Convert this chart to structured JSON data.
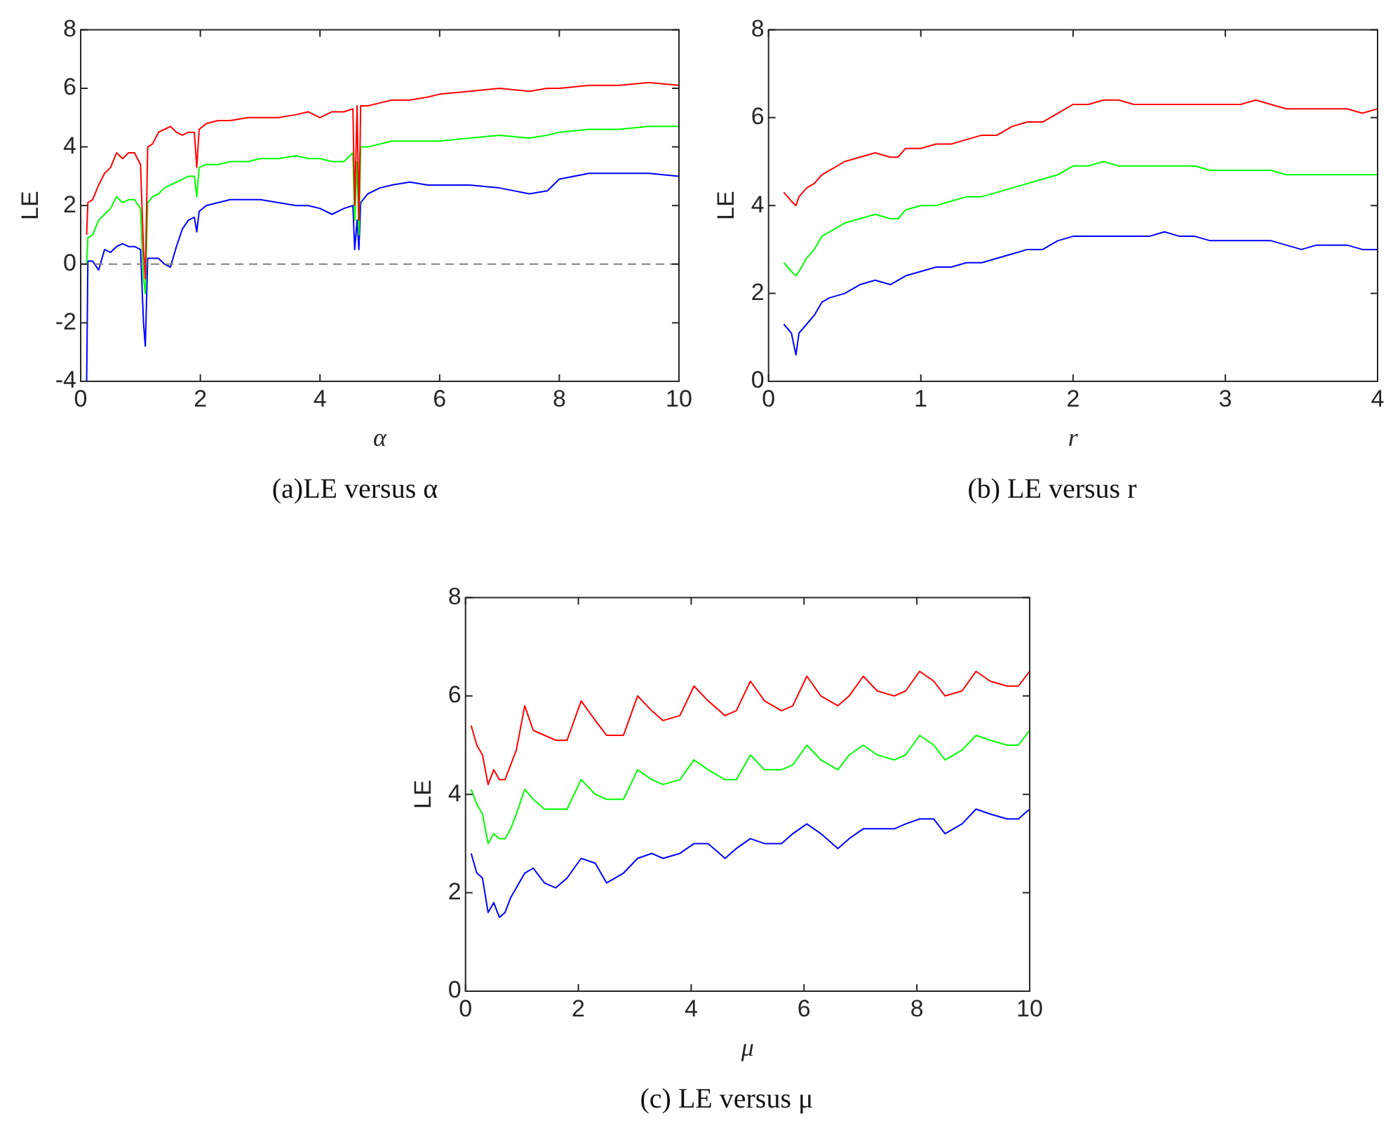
{
  "chart_data": [
    {
      "type": "line",
      "title": "(a)LE versus α",
      "xlabel": "α",
      "ylabel": "LE",
      "xlim": [
        0,
        10
      ],
      "xticks": [
        0,
        2,
        4,
        6,
        8,
        10
      ],
      "ylim": [
        -4,
        8
      ],
      "yticks": [
        -4,
        -2,
        0,
        2,
        4,
        6,
        8
      ],
      "grid": false,
      "legend": false,
      "marker": "none",
      "line_style": "solid",
      "x": [
        0.1,
        0.12,
        0.2,
        0.3,
        0.4,
        0.5,
        0.6,
        0.7,
        0.8,
        0.9,
        1.0,
        1.05,
        1.08,
        1.12,
        1.2,
        1.3,
        1.4,
        1.5,
        1.6,
        1.7,
        1.8,
        1.9,
        1.94,
        1.98,
        2.1,
        2.3,
        2.5,
        2.8,
        3.0,
        3.3,
        3.6,
        3.8,
        4.0,
        4.2,
        4.4,
        4.55,
        4.58,
        4.62,
        4.65,
        4.68,
        4.8,
        5.0,
        5.2,
        5.5,
        5.8,
        6.0,
        6.5,
        7.0,
        7.5,
        7.8,
        8.0,
        8.5,
        9.0,
        9.5,
        10
      ],
      "ref_lines": [
        {
          "axis": "y",
          "value": 0,
          "color": "#808080",
          "line_style": "dashed"
        }
      ],
      "series": [
        {
          "color": "#ff0000",
          "values": [
            1.0,
            2.1,
            2.2,
            2.7,
            3.1,
            3.3,
            3.8,
            3.6,
            3.8,
            3.8,
            3.4,
            0.5,
            -0.5,
            4.0,
            4.1,
            4.5,
            4.6,
            4.7,
            4.5,
            4.4,
            4.5,
            4.5,
            3.3,
            4.6,
            4.8,
            4.9,
            4.9,
            5.0,
            5.0,
            5.0,
            5.1,
            5.2,
            5.0,
            5.2,
            5.2,
            5.3,
            2.0,
            5.4,
            1.5,
            5.4,
            5.4,
            5.5,
            5.6,
            5.6,
            5.7,
            5.8,
            5.9,
            6.0,
            5.9,
            6.0,
            6.0,
            6.1,
            6.1,
            6.2,
            6.1
          ]
        },
        {
          "color": "#00ff00",
          "values": [
            0.0,
            0.9,
            1.0,
            1.5,
            1.7,
            1.9,
            2.3,
            2.1,
            2.2,
            2.2,
            1.9,
            -0.5,
            -1.0,
            2.1,
            2.3,
            2.4,
            2.6,
            2.7,
            2.8,
            2.9,
            3.0,
            3.0,
            2.3,
            3.3,
            3.4,
            3.4,
            3.5,
            3.5,
            3.6,
            3.6,
            3.7,
            3.6,
            3.6,
            3.5,
            3.5,
            3.8,
            1.5,
            3.5,
            1.0,
            4.0,
            4.0,
            4.1,
            4.2,
            4.2,
            4.2,
            4.2,
            4.3,
            4.4,
            4.3,
            4.4,
            4.5,
            4.6,
            4.6,
            4.7,
            4.7
          ]
        },
        {
          "color": "#0000ff",
          "values": [
            -4.0,
            0.1,
            0.1,
            -0.2,
            0.5,
            0.4,
            0.6,
            0.7,
            0.6,
            0.6,
            0.5,
            -2.0,
            -2.8,
            0.2,
            0.2,
            0.2,
            0.0,
            -0.1,
            0.6,
            1.2,
            1.5,
            1.6,
            1.1,
            1.8,
            2.0,
            2.1,
            2.2,
            2.2,
            2.2,
            2.1,
            2.0,
            2.0,
            1.9,
            1.7,
            1.9,
            2.0,
            0.5,
            1.5,
            0.5,
            2.1,
            2.4,
            2.6,
            2.7,
            2.8,
            2.7,
            2.7,
            2.7,
            2.6,
            2.4,
            2.5,
            2.9,
            3.1,
            3.1,
            3.1,
            3.0
          ]
        }
      ]
    },
    {
      "type": "line",
      "title": "(b) LE versus r",
      "xlabel": "r",
      "ylabel": "LE",
      "xlim": [
        0,
        4
      ],
      "xticks": [
        0,
        1,
        2,
        3,
        4
      ],
      "ylim": [
        0,
        8
      ],
      "yticks": [
        0,
        2,
        4,
        6,
        8
      ],
      "grid": false,
      "legend": false,
      "marker": "none",
      "line_style": "solid",
      "x": [
        0.1,
        0.15,
        0.18,
        0.2,
        0.25,
        0.3,
        0.35,
        0.4,
        0.5,
        0.6,
        0.7,
        0.8,
        0.85,
        0.9,
        1.0,
        1.1,
        1.2,
        1.3,
        1.4,
        1.5,
        1.6,
        1.7,
        1.8,
        1.9,
        2.0,
        2.1,
        2.2,
        2.3,
        2.4,
        2.5,
        2.6,
        2.7,
        2.8,
        2.9,
        3.0,
        3.1,
        3.2,
        3.3,
        3.4,
        3.5,
        3.6,
        3.7,
        3.8,
        3.9,
        4.0
      ],
      "series": [
        {
          "color": "#ff0000",
          "values": [
            4.3,
            4.1,
            4.0,
            4.2,
            4.4,
            4.5,
            4.7,
            4.8,
            5.0,
            5.1,
            5.2,
            5.1,
            5.1,
            5.3,
            5.3,
            5.4,
            5.4,
            5.5,
            5.6,
            5.6,
            5.8,
            5.9,
            5.9,
            6.1,
            6.3,
            6.3,
            6.4,
            6.4,
            6.3,
            6.3,
            6.3,
            6.3,
            6.3,
            6.3,
            6.3,
            6.3,
            6.4,
            6.3,
            6.2,
            6.2,
            6.2,
            6.2,
            6.2,
            6.1,
            6.2
          ]
        },
        {
          "color": "#00ff00",
          "values": [
            2.7,
            2.5,
            2.4,
            2.5,
            2.8,
            3.0,
            3.3,
            3.4,
            3.6,
            3.7,
            3.8,
            3.7,
            3.7,
            3.9,
            4.0,
            4.0,
            4.1,
            4.2,
            4.2,
            4.3,
            4.4,
            4.5,
            4.6,
            4.7,
            4.9,
            4.9,
            5.0,
            4.9,
            4.9,
            4.9,
            4.9,
            4.9,
            4.9,
            4.8,
            4.8,
            4.8,
            4.8,
            4.8,
            4.7,
            4.7,
            4.7,
            4.7,
            4.7,
            4.7,
            4.7
          ]
        },
        {
          "color": "#0000ff",
          "values": [
            1.3,
            1.1,
            0.6,
            1.1,
            1.3,
            1.5,
            1.8,
            1.9,
            2.0,
            2.2,
            2.3,
            2.2,
            2.3,
            2.4,
            2.5,
            2.6,
            2.6,
            2.7,
            2.7,
            2.8,
            2.9,
            3.0,
            3.0,
            3.2,
            3.3,
            3.3,
            3.3,
            3.3,
            3.3,
            3.3,
            3.4,
            3.3,
            3.3,
            3.2,
            3.2,
            3.2,
            3.2,
            3.2,
            3.1,
            3.0,
            3.1,
            3.1,
            3.1,
            3.0,
            3.0
          ]
        }
      ]
    },
    {
      "type": "line",
      "title": "(c) LE versus μ",
      "xlabel": "μ",
      "ylabel": "LE",
      "xlim": [
        0,
        10
      ],
      "xticks": [
        0,
        2,
        4,
        6,
        8,
        10
      ],
      "ylim": [
        0,
        8
      ],
      "yticks": [
        0,
        2,
        4,
        6,
        8
      ],
      "grid": false,
      "legend": false,
      "marker": "none",
      "line_style": "solid",
      "x": [
        0.1,
        0.2,
        0.3,
        0.4,
        0.5,
        0.6,
        0.7,
        0.8,
        0.9,
        1.05,
        1.2,
        1.4,
        1.6,
        1.8,
        2.05,
        2.3,
        2.5,
        2.8,
        3.05,
        3.3,
        3.5,
        3.8,
        4.05,
        4.3,
        4.6,
        4.8,
        5.05,
        5.3,
        5.6,
        5.8,
        6.05,
        6.3,
        6.6,
        6.8,
        7.05,
        7.3,
        7.6,
        7.8,
        8.05,
        8.3,
        8.5,
        8.8,
        9.05,
        9.3,
        9.6,
        9.8,
        10
      ],
      "series": [
        {
          "color": "#ff0000",
          "values": [
            5.4,
            5.0,
            4.8,
            4.2,
            4.5,
            4.3,
            4.3,
            4.6,
            4.9,
            5.8,
            5.3,
            5.2,
            5.1,
            5.1,
            5.9,
            5.5,
            5.2,
            5.2,
            6.0,
            5.7,
            5.5,
            5.6,
            6.2,
            5.9,
            5.6,
            5.7,
            6.3,
            5.9,
            5.7,
            5.8,
            6.4,
            6.0,
            5.8,
            6.0,
            6.4,
            6.1,
            6.0,
            6.1,
            6.5,
            6.3,
            6.0,
            6.1,
            6.5,
            6.3,
            6.2,
            6.2,
            6.5
          ]
        },
        {
          "color": "#00ff00",
          "values": [
            4.1,
            3.8,
            3.6,
            3.0,
            3.2,
            3.1,
            3.1,
            3.3,
            3.6,
            4.1,
            3.9,
            3.7,
            3.7,
            3.7,
            4.3,
            4.0,
            3.9,
            3.9,
            4.5,
            4.3,
            4.2,
            4.3,
            4.7,
            4.5,
            4.3,
            4.3,
            4.8,
            4.5,
            4.5,
            4.6,
            5.0,
            4.7,
            4.5,
            4.8,
            5.0,
            4.8,
            4.7,
            4.8,
            5.2,
            5.0,
            4.7,
            4.9,
            5.2,
            5.1,
            5.0,
            5.0,
            5.3
          ]
        },
        {
          "color": "#0000ff",
          "values": [
            2.8,
            2.4,
            2.3,
            1.6,
            1.8,
            1.5,
            1.6,
            1.9,
            2.1,
            2.4,
            2.5,
            2.2,
            2.1,
            2.3,
            2.7,
            2.6,
            2.2,
            2.4,
            2.7,
            2.8,
            2.7,
            2.8,
            3.0,
            3.0,
            2.7,
            2.9,
            3.1,
            3.0,
            3.0,
            3.2,
            3.4,
            3.2,
            2.9,
            3.1,
            3.3,
            3.3,
            3.3,
            3.4,
            3.5,
            3.5,
            3.2,
            3.4,
            3.7,
            3.6,
            3.5,
            3.5,
            3.7
          ]
        }
      ]
    }
  ]
}
